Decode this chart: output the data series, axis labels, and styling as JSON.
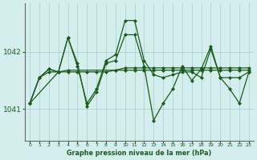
{
  "background_color": "#d4eeee",
  "grid_color": "#aacccc",
  "line_color": "#1a5c1a",
  "xlabel": "Graphe pression niveau de la mer (hPa)",
  "xlim": [
    -0.5,
    23.5
  ],
  "ylim": [
    1040.45,
    1042.85
  ],
  "yticks": [
    1041,
    1042
  ],
  "xtick_labels": [
    "0",
    "1",
    "2",
    "3",
    "4",
    "5",
    "6",
    "7",
    "8",
    "9",
    "10",
    "11",
    "12",
    "13",
    "14",
    "15",
    "16",
    "17",
    "18",
    "19",
    "20",
    "21",
    "22",
    "23"
  ],
  "series": [
    {
      "x": [
        0,
        1,
        2,
        3,
        4,
        5,
        6,
        7,
        8,
        9,
        10,
        11,
        12,
        13,
        14,
        15,
        16,
        17,
        18,
        19,
        20,
        21,
        22,
        23
      ],
      "y": [
        1041.1,
        1041.55,
        1041.7,
        1041.65,
        1042.25,
        1041.75,
        1041.1,
        1041.35,
        1041.85,
        1041.95,
        1042.55,
        1042.55,
        1041.85,
        1041.6,
        1041.55,
        1041.6,
        1041.65,
        1041.65,
        1041.55,
        1042.05,
        1041.55,
        1041.55,
        1041.55,
        1041.65
      ]
    },
    {
      "x": [
        0,
        1,
        2,
        3,
        4,
        5,
        6,
        7,
        8,
        9,
        10,
        11,
        12,
        13,
        14,
        15,
        16,
        17,
        18,
        19,
        20,
        21,
        22,
        23
      ],
      "y": [
        1041.1,
        1041.55,
        1041.7,
        1041.65,
        1042.25,
        1041.8,
        1041.05,
        1041.3,
        1041.8,
        1041.85,
        1042.3,
        1042.3,
        1041.75,
        1040.8,
        1041.1,
        1041.35,
        1041.75,
        1041.5,
        1041.7,
        1042.1,
        1041.55,
        1041.35,
        1041.1,
        1041.65
      ]
    },
    {
      "x": [
        0,
        1,
        2,
        3,
        4,
        5,
        6,
        7,
        8,
        9,
        10,
        11,
        12,
        13,
        14,
        15,
        16,
        17,
        18,
        19,
        20,
        21,
        22,
        23
      ],
      "y": [
        1041.1,
        1041.55,
        1041.65,
        1041.65,
        1041.65,
        1041.65,
        1041.65,
        1041.65,
        1041.65,
        1041.68,
        1041.72,
        1041.72,
        1041.72,
        1041.72,
        1041.72,
        1041.72,
        1041.72,
        1041.72,
        1041.72,
        1041.72,
        1041.72,
        1041.72,
        1041.72,
        1041.72
      ]
    },
    {
      "x": [
        0,
        3,
        4,
        9,
        10,
        11,
        12,
        13,
        14,
        15,
        16,
        17,
        18,
        19,
        20,
        21,
        22,
        23
      ],
      "y": [
        1041.1,
        1041.65,
        1041.68,
        1041.68,
        1041.68,
        1041.68,
        1041.68,
        1041.68,
        1041.68,
        1041.68,
        1041.68,
        1041.68,
        1041.68,
        1041.68,
        1041.68,
        1041.68,
        1041.68,
        1041.68
      ]
    }
  ],
  "fig_width": 3.2,
  "fig_height": 2.0,
  "dpi": 100
}
